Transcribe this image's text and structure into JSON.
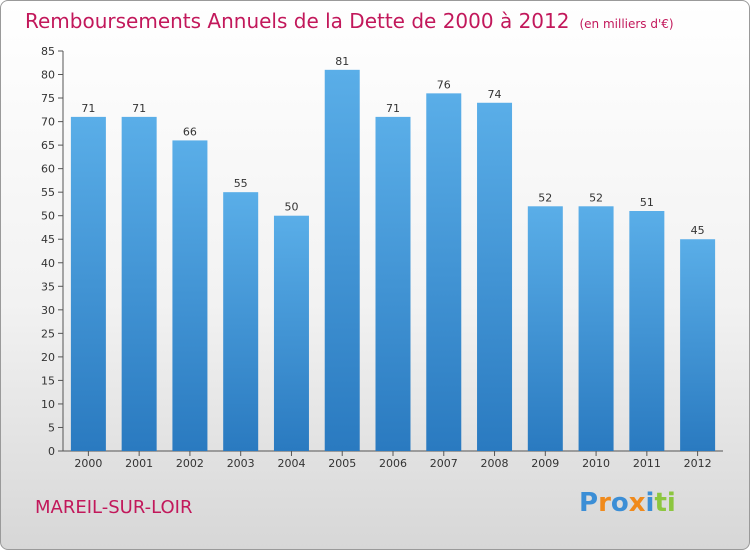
{
  "chart_data": {
    "type": "bar",
    "title": "Remboursements Annuels de la Dette de 2000 à 2012",
    "subtitle": "(en milliers d'€)",
    "categories": [
      "2000",
      "2001",
      "2002",
      "2003",
      "2004",
      "2005",
      "2006",
      "2007",
      "2008",
      "2009",
      "2010",
      "2011",
      "2012"
    ],
    "values": [
      71,
      71,
      66,
      55,
      50,
      81,
      71,
      76,
      74,
      52,
      52,
      51,
      45
    ],
    "ylim": [
      0,
      85
    ],
    "yticks": [
      0,
      5,
      10,
      15,
      20,
      25,
      30,
      35,
      40,
      45,
      50,
      55,
      60,
      65,
      70,
      75,
      80,
      85
    ],
    "grid": false,
    "data_labels": true,
    "colors": {
      "bar_top": "#5aaee8",
      "bar_bottom": "#2a7ac0",
      "title": "#c2185b"
    }
  },
  "commune": "MAREIL-SUR-LOIR",
  "logo": {
    "text": "Proxiti",
    "letters": [
      {
        "ch": "P",
        "color": "#3b8ed6"
      },
      {
        "ch": "r",
        "color": "#f08a1c"
      },
      {
        "ch": "o",
        "color": "#3b8ed6"
      },
      {
        "ch": "x",
        "color": "#f08a1c"
      },
      {
        "ch": "i",
        "color": "#3b8ed6"
      },
      {
        "ch": "t",
        "color": "#8cc63f"
      },
      {
        "ch": "i",
        "color": "#8cc63f"
      }
    ]
  }
}
